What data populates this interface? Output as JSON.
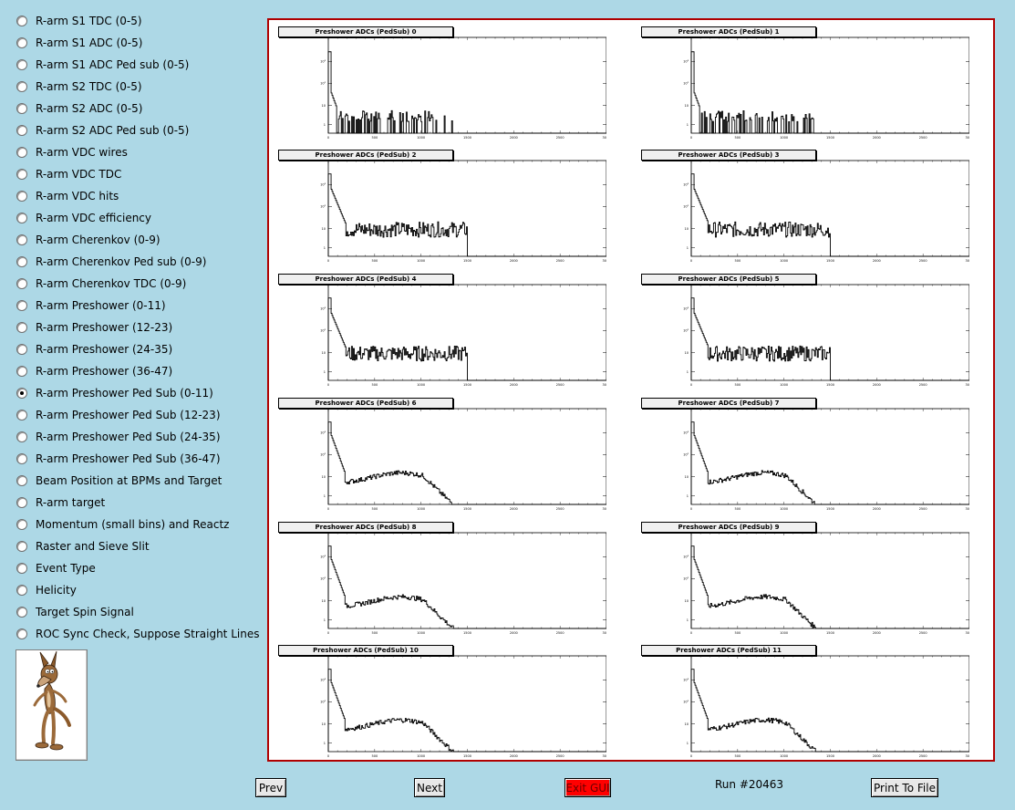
{
  "menu": {
    "items": [
      {
        "label": "R-arm S1 TDC (0-5)",
        "checked": false
      },
      {
        "label": "R-arm S1 ADC (0-5)",
        "checked": false
      },
      {
        "label": "R-arm S1 ADC Ped sub (0-5)",
        "checked": false
      },
      {
        "label": "R-arm S2 TDC (0-5)",
        "checked": false
      },
      {
        "label": "R-arm S2 ADC (0-5)",
        "checked": false
      },
      {
        "label": "R-arm S2 ADC Ped sub (0-5)",
        "checked": false
      },
      {
        "label": "R-arm VDC wires",
        "checked": false
      },
      {
        "label": "R-arm VDC TDC",
        "checked": false
      },
      {
        "label": "R-arm VDC hits",
        "checked": false
      },
      {
        "label": "R-arm VDC efficiency",
        "checked": false
      },
      {
        "label": "R-arm Cherenkov (0-9)",
        "checked": false
      },
      {
        "label": "R-arm Cherenkov Ped sub (0-9)",
        "checked": false
      },
      {
        "label": "R-arm Cherenkov TDC (0-9)",
        "checked": false
      },
      {
        "label": "R-arm Preshower (0-11)",
        "checked": false
      },
      {
        "label": "R-arm Preshower (12-23)",
        "checked": false
      },
      {
        "label": "R-arm Preshower (24-35)",
        "checked": false
      },
      {
        "label": "R-arm Preshower (36-47)",
        "checked": false
      },
      {
        "label": "R-arm Preshower Ped Sub (0-11)",
        "checked": true
      },
      {
        "label": "R-arm Preshower Ped Sub (12-23)",
        "checked": false
      },
      {
        "label": "R-arm Preshower Ped Sub (24-35)",
        "checked": false
      },
      {
        "label": "R-arm Preshower Ped Sub (36-47)",
        "checked": false
      },
      {
        "label": "Beam Position at BPMs and Target",
        "checked": false
      },
      {
        "label": "R-arm target",
        "checked": false
      },
      {
        "label": "Momentum (small bins) and Reactz",
        "checked": false
      },
      {
        "label": "Raster and Sieve Slit",
        "checked": false
      },
      {
        "label": "Event Type",
        "checked": false
      },
      {
        "label": "Helicity",
        "checked": false
      },
      {
        "label": "Target Spin Signal",
        "checked": false
      },
      {
        "label": "ROC Sync Check, Suppose Straight Lines",
        "checked": false
      }
    ]
  },
  "logo": {
    "icon": "wile-e-coyote-icon"
  },
  "canvas": {
    "border_color": "#b00000",
    "histograms": [
      {
        "title": "Preshower ADCs (PedSub) 0",
        "shape": "peak"
      },
      {
        "title": "Preshower ADCs (PedSub) 1",
        "shape": "peak"
      },
      {
        "title": "Preshower ADCs (PedSub) 2",
        "shape": "flat"
      },
      {
        "title": "Preshower ADCs (PedSub) 3",
        "shape": "flat"
      },
      {
        "title": "Preshower ADCs (PedSub) 4",
        "shape": "flat"
      },
      {
        "title": "Preshower ADCs (PedSub) 5",
        "shape": "flat"
      },
      {
        "title": "Preshower ADCs (PedSub) 6",
        "shape": "hump"
      },
      {
        "title": "Preshower ADCs (PedSub) 7",
        "shape": "hump"
      },
      {
        "title": "Preshower ADCs (PedSub) 8",
        "shape": "hump"
      },
      {
        "title": "Preshower ADCs (PedSub) 9",
        "shape": "hump"
      },
      {
        "title": "Preshower ADCs (PedSub) 10",
        "shape": "hump"
      },
      {
        "title": "Preshower ADCs (PedSub) 11",
        "shape": "hump"
      }
    ],
    "x_ticks": [
      "0",
      "500",
      "1000",
      "1500",
      "2000",
      "2500",
      "3000"
    ],
    "x_range": [
      0,
      3000
    ],
    "y_ticks": [
      "1",
      "10",
      "10²",
      "10³"
    ],
    "y_scale": "log"
  },
  "buttons": {
    "prev": "Prev",
    "next": "Next",
    "exit": "Exit GUI",
    "print": "Print To File"
  },
  "status": {
    "run": "Run #20463"
  },
  "colors": {
    "background": "#add8e6",
    "exit_button": "#ff0000"
  }
}
